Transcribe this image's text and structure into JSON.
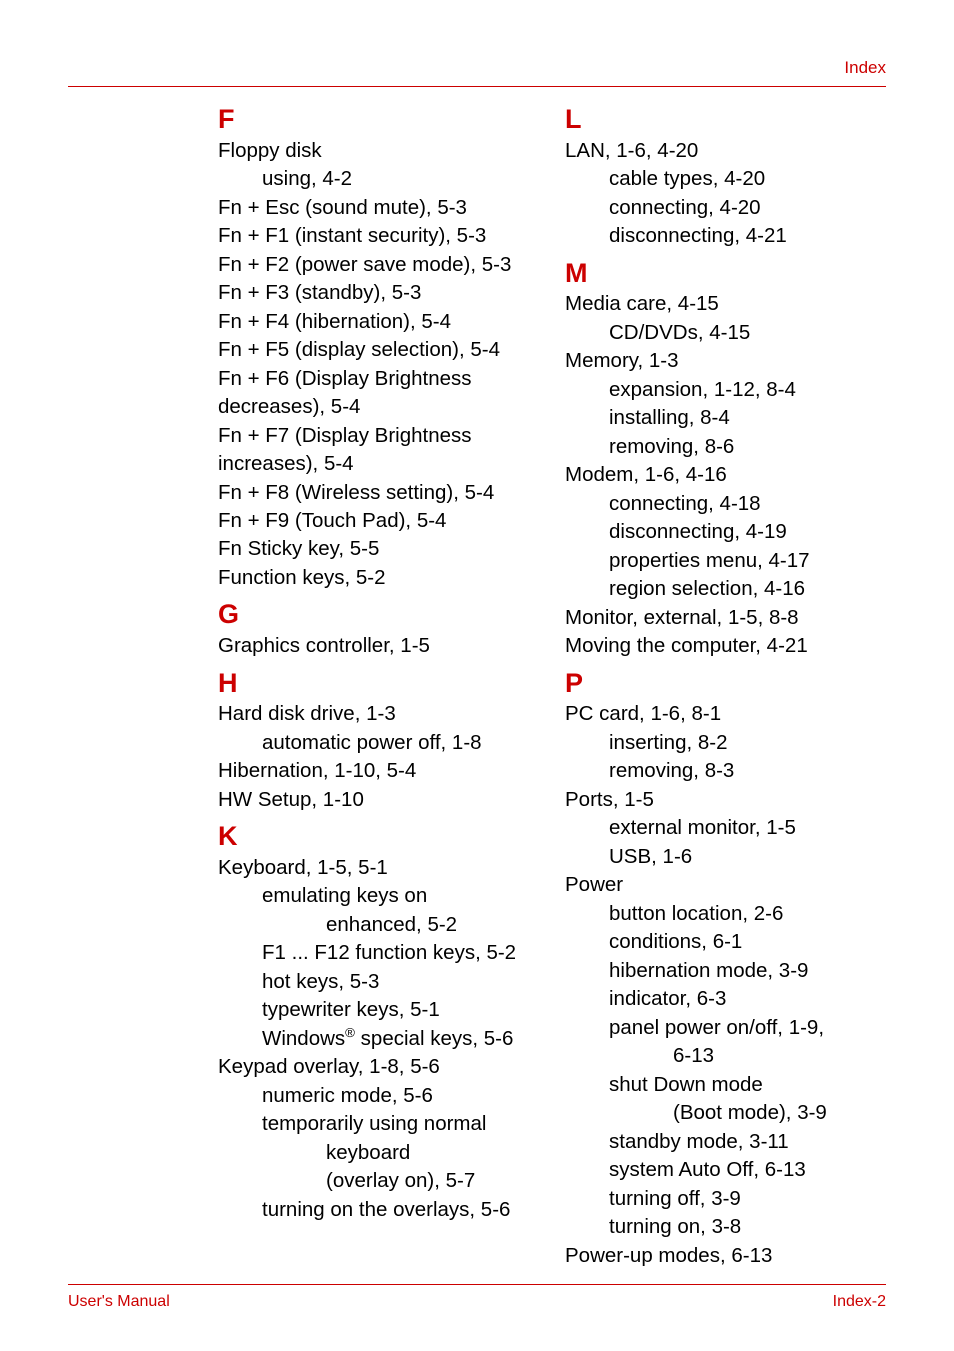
{
  "header": {
    "label": "Index"
  },
  "footer": {
    "left": "User's Manual",
    "right": "Index-2"
  },
  "colors": {
    "accent": "#cc0000",
    "text": "#000000",
    "background": "#ffffff"
  },
  "left": {
    "F": [
      {
        "t": "Floppy disk"
      },
      {
        "t": "using, 4-2",
        "lvl": 1
      },
      {
        "t": "Fn + Esc (sound mute), 5-3"
      },
      {
        "t": "Fn + F1 (instant security), 5-3"
      },
      {
        "t": "Fn + F2 (power save mode), 5-3"
      },
      {
        "t": "Fn + F3 (standby), 5-3"
      },
      {
        "t": "Fn + F4 (hibernation), 5-4"
      },
      {
        "t": "Fn + F5 (display selection), 5-4"
      },
      {
        "t": "Fn + F6 (Display Brightness decreases), 5-4"
      },
      {
        "t": "Fn + F7 (Display Brightness increases), 5-4"
      },
      {
        "t": "Fn + F8 (Wireless setting), 5-4"
      },
      {
        "t": "Fn + F9 (Touch Pad), 5-4"
      },
      {
        "t": "Fn Sticky key, 5-5"
      },
      {
        "t": "Function keys, 5-2"
      }
    ],
    "G": [
      {
        "t": "Graphics controller, 1-5"
      }
    ],
    "H": [
      {
        "t": "Hard disk drive, 1-3"
      },
      {
        "t": "automatic power off, 1-8",
        "lvl": 1
      },
      {
        "t": "Hibernation, 1-10, 5-4"
      },
      {
        "t": "HW Setup, 1-10"
      }
    ],
    "K": [
      {
        "t": "Keyboard, 1-5, 5-1"
      },
      {
        "t": "emulating keys on",
        "lvl": 1
      },
      {
        "t": "enhanced, 5-2",
        "lvl": 2
      },
      {
        "t": "F1 ... F12 function keys, 5-2",
        "lvl": 1
      },
      {
        "t": "hot keys, 5-3",
        "lvl": 1
      },
      {
        "t": "typewriter keys, 5-1",
        "lvl": 1
      },
      {
        "t": "Windows<sup>®</sup> special keys, 5-6",
        "lvl": 1,
        "html": true
      },
      {
        "t": "Keypad overlay, 1-8, 5-6"
      },
      {
        "t": "numeric mode, 5-6",
        "lvl": 1
      },
      {
        "t": "temporarily using normal",
        "lvl": 1
      },
      {
        "t": "keyboard",
        "lvl": 2
      },
      {
        "t": "(overlay on), 5-7",
        "lvl": 2
      },
      {
        "t": "turning on the overlays, 5-6",
        "lvl": 1
      }
    ]
  },
  "right": {
    "L": [
      {
        "t": "LAN, 1-6, 4-20"
      },
      {
        "t": "cable types, 4-20",
        "lvl": 1
      },
      {
        "t": "connecting, 4-20",
        "lvl": 1
      },
      {
        "t": "disconnecting, 4-21",
        "lvl": 1
      }
    ],
    "M": [
      {
        "t": "Media care, 4-15"
      },
      {
        "t": "CD/DVDs, 4-15",
        "lvl": 1
      },
      {
        "t": "Memory, 1-3"
      },
      {
        "t": "expansion, 1-12, 8-4",
        "lvl": 1
      },
      {
        "t": "installing, 8-4",
        "lvl": 1
      },
      {
        "t": "removing, 8-6",
        "lvl": 1
      },
      {
        "t": "Modem, 1-6, 4-16"
      },
      {
        "t": "connecting, 4-18",
        "lvl": 1
      },
      {
        "t": "disconnecting, 4-19",
        "lvl": 1
      },
      {
        "t": "properties menu, 4-17",
        "lvl": 1
      },
      {
        "t": "region selection, 4-16",
        "lvl": 1
      },
      {
        "t": "Monitor, external, 1-5, 8-8"
      },
      {
        "t": "Moving the computer, 4-21"
      }
    ],
    "P": [
      {
        "t": "PC card, 1-6, 8-1"
      },
      {
        "t": "inserting, 8-2",
        "lvl": 1
      },
      {
        "t": "removing, 8-3",
        "lvl": 1
      },
      {
        "t": "Ports, 1-5"
      },
      {
        "t": "external monitor, 1-5",
        "lvl": 1
      },
      {
        "t": "USB, 1-6",
        "lvl": 1
      },
      {
        "t": "Power"
      },
      {
        "t": "button location, 2-6",
        "lvl": 1
      },
      {
        "t": "conditions, 6-1",
        "lvl": 1
      },
      {
        "t": "hibernation mode, 3-9",
        "lvl": 1
      },
      {
        "t": "indicator, 6-3",
        "lvl": 1
      },
      {
        "t": "panel power on/off, 1-9,",
        "lvl": 1
      },
      {
        "t": "6-13",
        "lvl": 2
      },
      {
        "t": "shut Down mode",
        "lvl": 1
      },
      {
        "t": "(Boot mode), 3-9",
        "lvl": 2
      },
      {
        "t": "standby mode, 3-11",
        "lvl": 1
      },
      {
        "t": "system Auto Off, 6-13",
        "lvl": 1
      },
      {
        "t": "turning off, 3-9",
        "lvl": 1
      },
      {
        "t": "turning on, 3-8",
        "lvl": 1
      },
      {
        "t": "Power-up modes, 6-13"
      }
    ]
  }
}
